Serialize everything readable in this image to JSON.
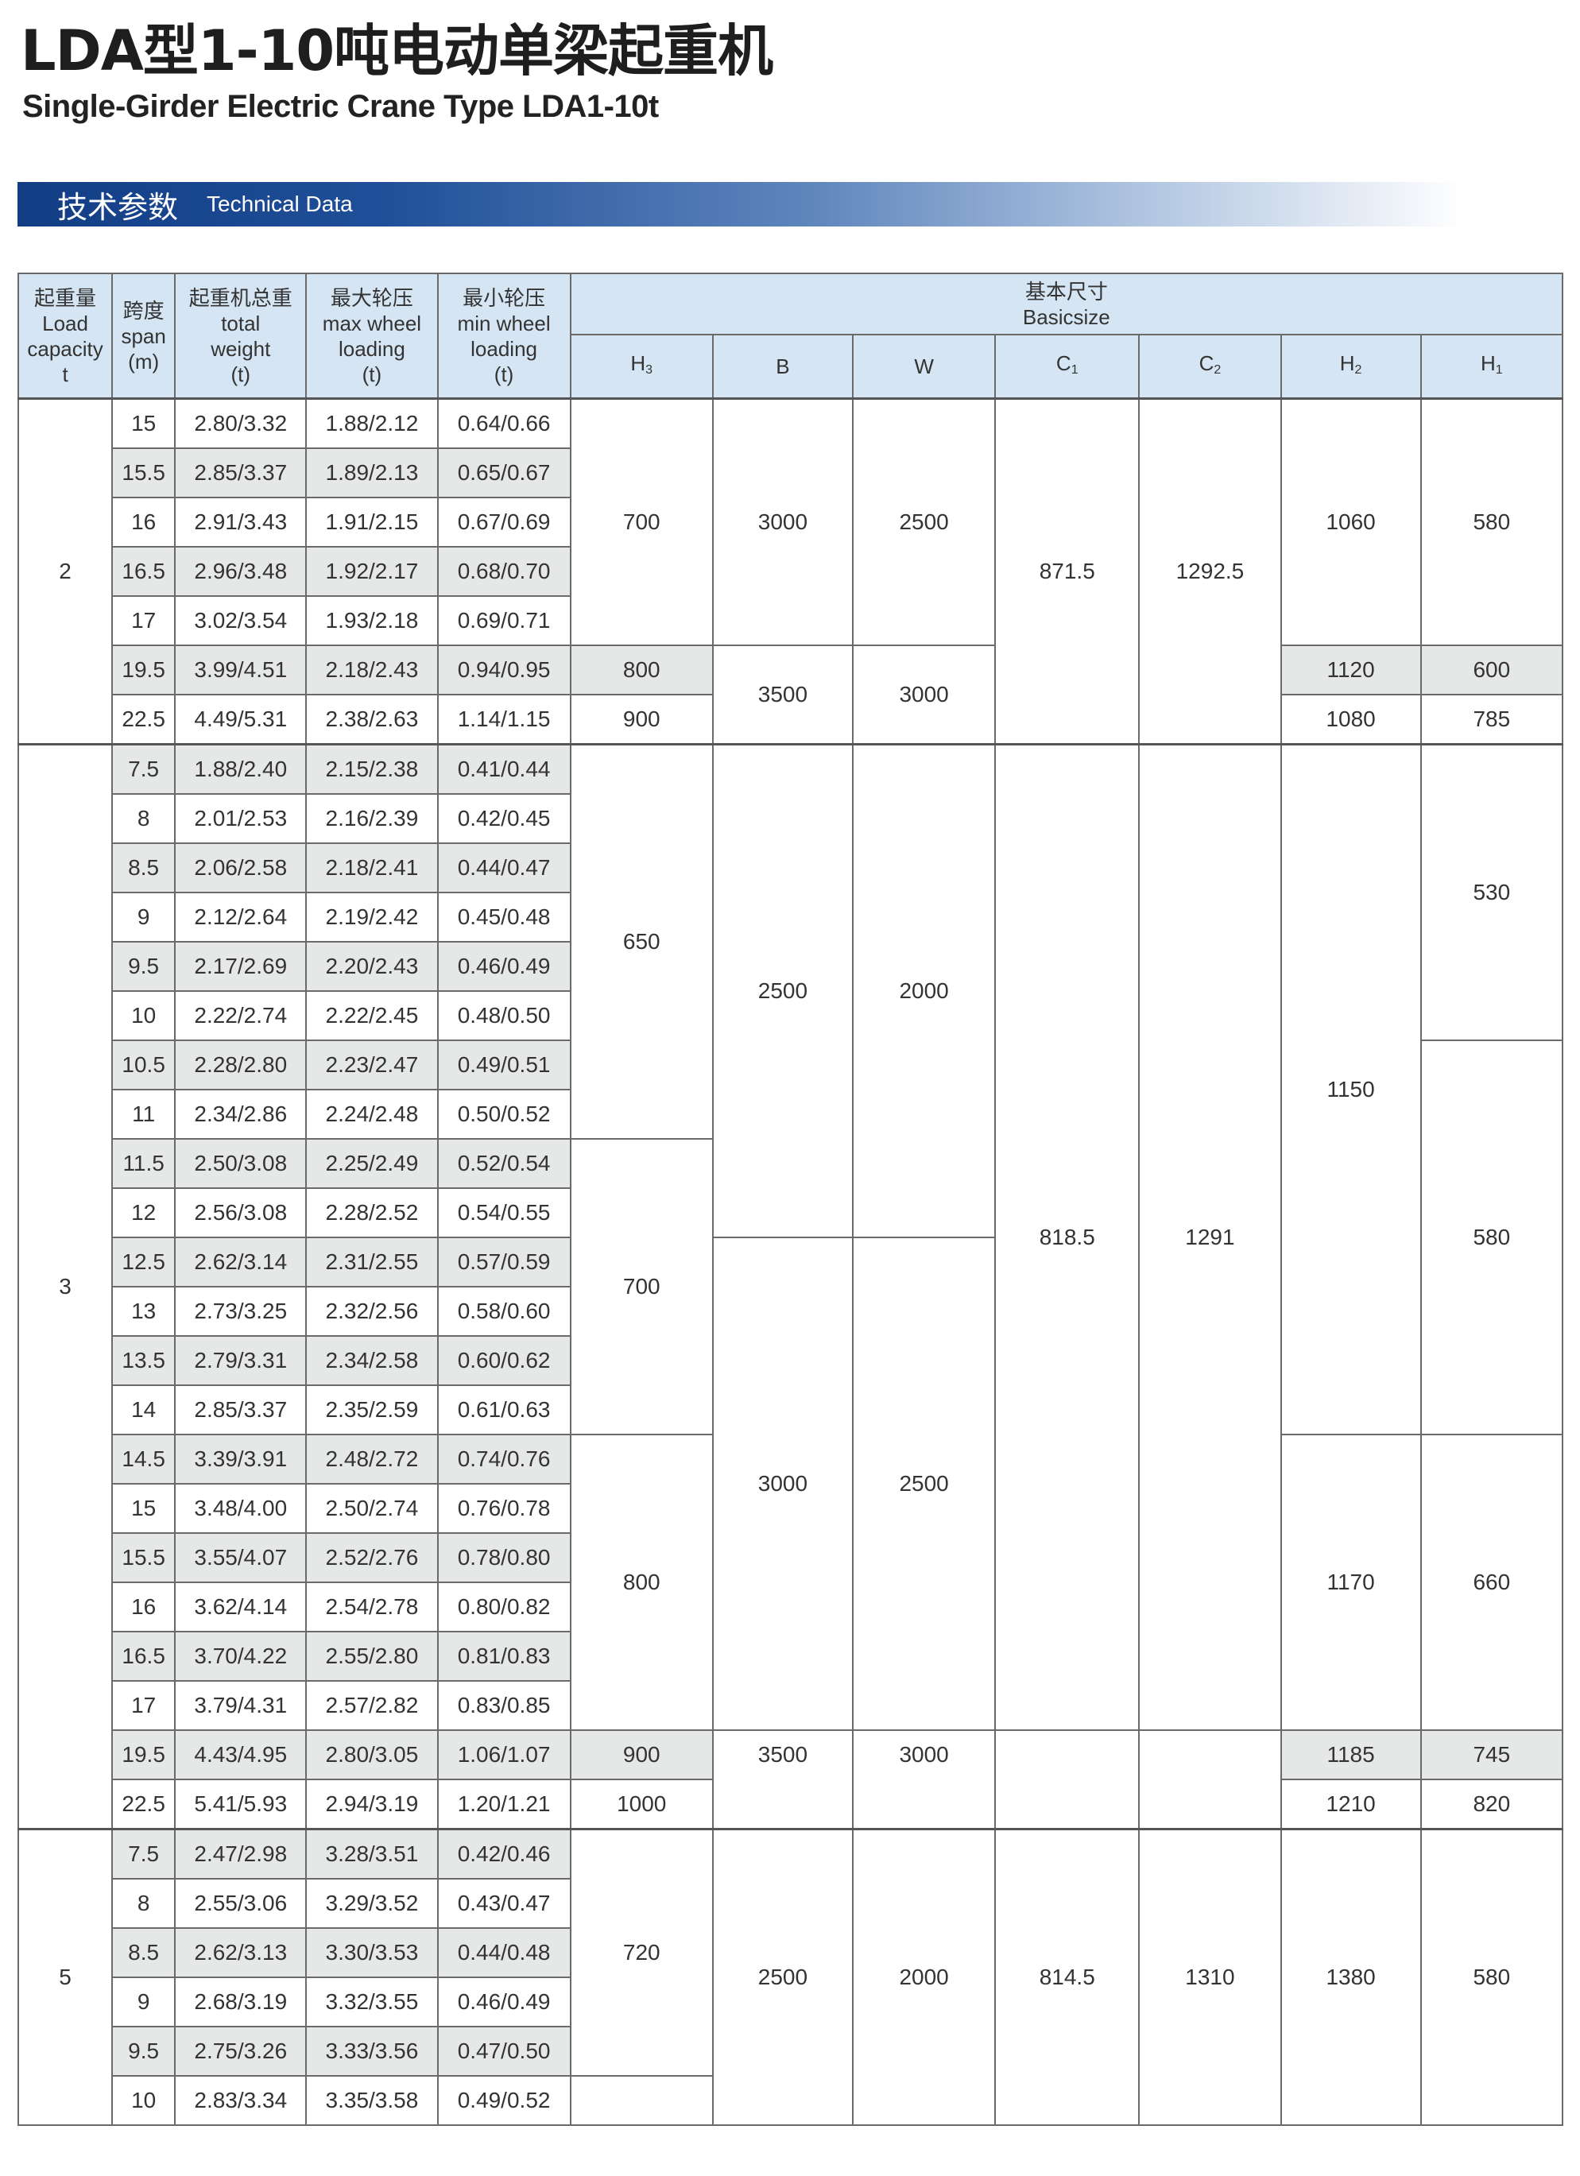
{
  "title": "LDA型1-10吨电动单梁起重机",
  "subtitle": "Single-Girder Electric Crane Type LDA1-10t",
  "banner": {
    "cn": "技术参数",
    "en": "Technical Data"
  },
  "colors": {
    "header_bg": "#d5e5f4",
    "shaded_row": "#e6e8e8",
    "banner_start": "#123d85"
  },
  "header": {
    "columns": [
      {
        "cn": "起重量",
        "en": [
          "Load",
          "capacity",
          "t"
        ]
      },
      {
        "cn": "跨度",
        "en": [
          "span",
          "(m)"
        ]
      },
      {
        "cn": "起重机总重",
        "en": [
          "total",
          "weight",
          "(t)"
        ]
      },
      {
        "cn": "最大轮压",
        "en": [
          "max wheel",
          "loading",
          "(t)"
        ]
      },
      {
        "cn": "最小轮压",
        "en": [
          "min wheel",
          "loading",
          "(t)"
        ]
      }
    ],
    "basic_size": {
      "cn": "基本尺寸",
      "en": "Basicsize"
    },
    "dims": [
      {
        "main": "H",
        "sub": "3"
      },
      {
        "main": "B",
        "sub": ""
      },
      {
        "main": "W",
        "sub": ""
      },
      {
        "main": "C",
        "sub": "1"
      },
      {
        "main": "C",
        "sub": "2"
      },
      {
        "main": "H",
        "sub": "2"
      },
      {
        "main": "H",
        "sub": "1"
      }
    ]
  },
  "groups": [
    {
      "capacity": "2",
      "rows": [
        {
          "span": "15",
          "weight": "2.80/3.32",
          "max": "1.88/2.12",
          "min": "0.64/0.66",
          "shaded": false
        },
        {
          "span": "15.5",
          "weight": "2.85/3.37",
          "max": "1.89/2.13",
          "min": "0.65/0.67",
          "shaded": true
        },
        {
          "span": "16",
          "weight": "2.91/3.43",
          "max": "1.91/2.15",
          "min": "0.67/0.69",
          "shaded": false
        },
        {
          "span": "16.5",
          "weight": "2.96/3.48",
          "max": "1.92/2.17",
          "min": "0.68/0.70",
          "shaded": true
        },
        {
          "span": "17",
          "weight": "3.02/3.54",
          "max": "1.93/2.18",
          "min": "0.69/0.71",
          "shaded": false
        },
        {
          "span": "19.5",
          "weight": "3.99/4.51",
          "max": "2.18/2.43",
          "min": "0.94/0.95",
          "shaded": true
        },
        {
          "span": "22.5",
          "weight": "4.49/5.31",
          "max": "2.38/2.63",
          "min": "1.14/1.15",
          "shaded": false
        }
      ],
      "dims": [
        [
          {
            "v": "700",
            "n": 5
          },
          {
            "v": "800",
            "n": 1,
            "sh": true
          },
          {
            "v": "900",
            "n": 1
          }
        ],
        [
          {
            "v": "3000",
            "n": 5
          },
          {
            "v": "3500",
            "n": 2
          }
        ],
        [
          {
            "v": "2500",
            "n": 5
          },
          {
            "v": "3000",
            "n": 2
          }
        ],
        [
          {
            "v": "871.5",
            "n": 7
          }
        ],
        [
          {
            "v": "1292.5",
            "n": 7
          }
        ],
        [
          {
            "v": "1060",
            "n": 5
          },
          {
            "v": "1120",
            "n": 1,
            "sh": true
          },
          {
            "v": "1080",
            "n": 1
          }
        ],
        [
          {
            "v": "580",
            "n": 5
          },
          {
            "v": "600",
            "n": 1,
            "sh": true
          },
          {
            "v": "785",
            "n": 1
          }
        ]
      ]
    },
    {
      "capacity": "3",
      "rows": [
        {
          "span": "7.5",
          "weight": "1.88/2.40",
          "max": "2.15/2.38",
          "min": "0.41/0.44",
          "shaded": true
        },
        {
          "span": "8",
          "weight": "2.01/2.53",
          "max": "2.16/2.39",
          "min": "0.42/0.45",
          "shaded": false
        },
        {
          "span": "8.5",
          "weight": "2.06/2.58",
          "max": "2.18/2.41",
          "min": "0.44/0.47",
          "shaded": true
        },
        {
          "span": "9",
          "weight": "2.12/2.64",
          "max": "2.19/2.42",
          "min": "0.45/0.48",
          "shaded": false
        },
        {
          "span": "9.5",
          "weight": "2.17/2.69",
          "max": "2.20/2.43",
          "min": "0.46/0.49",
          "shaded": true
        },
        {
          "span": "10",
          "weight": "2.22/2.74",
          "max": "2.22/2.45",
          "min": "0.48/0.50",
          "shaded": false
        },
        {
          "span": "10.5",
          "weight": "2.28/2.80",
          "max": "2.23/2.47",
          "min": "0.49/0.51",
          "shaded": true
        },
        {
          "span": "11",
          "weight": "2.34/2.86",
          "max": "2.24/2.48",
          "min": "0.50/0.52",
          "shaded": false
        },
        {
          "span": "11.5",
          "weight": "2.50/3.08",
          "max": "2.25/2.49",
          "min": "0.52/0.54",
          "shaded": true
        },
        {
          "span": "12",
          "weight": "2.56/3.08",
          "max": "2.28/2.52",
          "min": "0.54/0.55",
          "shaded": false
        },
        {
          "span": "12.5",
          "weight": "2.62/3.14",
          "max": "2.31/2.55",
          "min": "0.57/0.59",
          "shaded": true
        },
        {
          "span": "13",
          "weight": "2.73/3.25",
          "max": "2.32/2.56",
          "min": "0.58/0.60",
          "shaded": false
        },
        {
          "span": "13.5",
          "weight": "2.79/3.31",
          "max": "2.34/2.58",
          "min": "0.60/0.62",
          "shaded": true
        },
        {
          "span": "14",
          "weight": "2.85/3.37",
          "max": "2.35/2.59",
          "min": "0.61/0.63",
          "shaded": false
        },
        {
          "span": "14.5",
          "weight": "3.39/3.91",
          "max": "2.48/2.72",
          "min": "0.74/0.76",
          "shaded": true
        },
        {
          "span": "15",
          "weight": "3.48/4.00",
          "max": "2.50/2.74",
          "min": "0.76/0.78",
          "shaded": false
        },
        {
          "span": "15.5",
          "weight": "3.55/4.07",
          "max": "2.52/2.76",
          "min": "0.78/0.80",
          "shaded": true
        },
        {
          "span": "16",
          "weight": "3.62/4.14",
          "max": "2.54/2.78",
          "min": "0.80/0.82",
          "shaded": false
        },
        {
          "span": "16.5",
          "weight": "3.70/4.22",
          "max": "2.55/2.80",
          "min": "0.81/0.83",
          "shaded": true
        },
        {
          "span": "17",
          "weight": "3.79/4.31",
          "max": "2.57/2.82",
          "min": "0.83/0.85",
          "shaded": false
        },
        {
          "span": "19.5",
          "weight": "4.43/4.95",
          "max": "2.80/3.05",
          "min": "1.06/1.07",
          "shaded": true
        },
        {
          "span": "22.5",
          "weight": "5.41/5.93",
          "max": "2.94/3.19",
          "min": "1.20/1.21",
          "shaded": false
        }
      ],
      "dims": [
        [
          {
            "v": "650",
            "n": 8
          },
          {
            "v": "700",
            "n": 6
          },
          {
            "v": "800",
            "n": 6
          },
          {
            "v": "900",
            "n": 1,
            "sh": true
          },
          {
            "v": "1000",
            "n": 1
          }
        ],
        [
          {
            "v": "2500",
            "n": 10
          },
          {
            "v": "3000",
            "n": 10
          },
          {
            "v": "3500",
            "n": 2,
            "top": true
          }
        ],
        [
          {
            "v": "2000",
            "n": 10
          },
          {
            "v": "2500",
            "n": 10
          },
          {
            "v": "3000",
            "n": 2,
            "top": true
          }
        ],
        [
          {
            "v": "818.5",
            "n": 20
          },
          {
            "v": "",
            "n": 2
          }
        ],
        [
          {
            "v": "1291",
            "n": 20
          },
          {
            "v": "",
            "n": 2
          }
        ],
        [
          {
            "v": "1150",
            "n": 14
          },
          {
            "v": "1170",
            "n": 6
          },
          {
            "v": "1185",
            "n": 1,
            "sh": true
          },
          {
            "v": "1210",
            "n": 1
          }
        ],
        [
          {
            "v": "530",
            "n": 6
          },
          {
            "v": "580",
            "n": 8
          },
          {
            "v": "660",
            "n": 6
          },
          {
            "v": "745",
            "n": 1,
            "sh": true
          },
          {
            "v": "820",
            "n": 1
          }
        ]
      ]
    },
    {
      "capacity": "5",
      "rows": [
        {
          "span": "7.5",
          "weight": "2.47/2.98",
          "max": "3.28/3.51",
          "min": "0.42/0.46",
          "shaded": true
        },
        {
          "span": "8",
          "weight": "2.55/3.06",
          "max": "3.29/3.52",
          "min": "0.43/0.47",
          "shaded": false
        },
        {
          "span": "8.5",
          "weight": "2.62/3.13",
          "max": "3.30/3.53",
          "min": "0.44/0.48",
          "shaded": true
        },
        {
          "span": "9",
          "weight": "2.68/3.19",
          "max": "3.32/3.55",
          "min": "0.46/0.49",
          "shaded": false
        },
        {
          "span": "9.5",
          "weight": "2.75/3.26",
          "max": "3.33/3.56",
          "min": "0.47/0.50",
          "shaded": true
        },
        {
          "span": "10",
          "weight": "2.83/3.34",
          "max": "3.35/3.58",
          "min": "0.49/0.52",
          "shaded": false
        }
      ],
      "dims": [
        [
          {
            "v": "720",
            "n": 5
          },
          {
            "v": "",
            "n": 1
          }
        ],
        [
          {
            "v": "2500",
            "n": 6
          }
        ],
        [
          {
            "v": "2000",
            "n": 6
          }
        ],
        [
          {
            "v": "814.5",
            "n": 6
          }
        ],
        [
          {
            "v": "1310",
            "n": 6
          }
        ],
        [
          {
            "v": "1380",
            "n": 6
          }
        ],
        [
          {
            "v": "580",
            "n": 6
          }
        ]
      ]
    }
  ]
}
